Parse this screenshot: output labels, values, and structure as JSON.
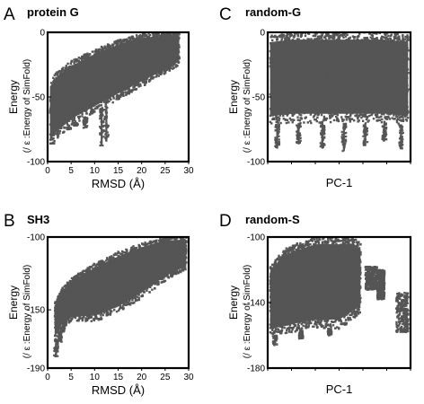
{
  "chart_data": [
    {
      "id": "A",
      "letter": "A",
      "title": "protein G",
      "type": "scatter",
      "xlabel": "RMSD (Å)",
      "ylabel": "Energy",
      "ylabel_sub": "(/ ε :Energy of SimFold)",
      "xlim": [
        0,
        30
      ],
      "ylim": [
        -100,
        0
      ],
      "xticks": [
        "0",
        "5",
        "10",
        "15",
        "20",
        "25",
        "30"
      ],
      "xtick_values": [
        0,
        5,
        10,
        15,
        20,
        25,
        30
      ],
      "yticks": [
        "0",
        "-50",
        "-100"
      ],
      "ytick_values": [
        0,
        -50,
        -100
      ],
      "color": "#555555",
      "band": {
        "x": [
          0.5,
          2,
          5,
          10,
          15,
          20,
          25,
          28
        ],
        "upper": [
          -38,
          -30,
          -22,
          -13,
          -6,
          -1,
          0,
          0
        ],
        "lower": [
          -88,
          -82,
          -72,
          -62,
          -52,
          -42,
          -32,
          -25
        ]
      },
      "spikes": [
        {
          "x": 1.0,
          "low": -86
        },
        {
          "x": 4.5,
          "low": -75
        },
        {
          "x": 6.0,
          "low": -72
        },
        {
          "x": 8.0,
          "low": -74
        },
        {
          "x": 11.5,
          "low": -88
        },
        {
          "x": 12.5,
          "low": -84
        }
      ]
    },
    {
      "id": "B",
      "letter": "B",
      "title": "SH3",
      "type": "scatter",
      "xlabel": "RMSD (Å)",
      "ylabel": "Energy",
      "ylabel_sub": "(/ ε :Energy of SimFold)",
      "xlim": [
        0,
        30
      ],
      "ylim": [
        -190,
        -100
      ],
      "xticks": [
        "0",
        "5",
        "10",
        "15",
        "20",
        "25",
        "30"
      ],
      "xtick_values": [
        0,
        5,
        10,
        15,
        20,
        25,
        30
      ],
      "yticks": [
        "-100",
        "-150",
        "-190"
      ],
      "ytick_values": [
        -100,
        -150,
        -190
      ],
      "color": "#555555",
      "band": {
        "x": [
          1.5,
          3,
          5,
          10,
          15,
          20,
          25,
          29.5
        ],
        "upper": [
          -145,
          -135,
          -128,
          -118,
          -110,
          -104,
          -100,
          -100
        ],
        "lower": [
          -172,
          -162,
          -158,
          -158,
          -152,
          -142,
          -130,
          -122
        ]
      },
      "spikes": [
        {
          "x": 1.8,
          "low": -182
        },
        {
          "x": 2.6,
          "low": -172
        },
        {
          "x": 3.2,
          "low": -165
        },
        {
          "x": 3.6,
          "low": -158
        }
      ]
    },
    {
      "id": "C",
      "letter": "C",
      "title": "random-G",
      "type": "scatter",
      "xlabel": "PC-1",
      "ylabel": "Energy",
      "ylabel_sub": "(/ ε :Energy of SimFold)",
      "xlim": [
        0,
        30
      ],
      "ylim": [
        -100,
        0
      ],
      "xticks": [
        "",
        "",
        "",
        "",
        "",
        "",
        ""
      ],
      "xtick_values": [
        0,
        5,
        10,
        15,
        20,
        25,
        30
      ],
      "yticks": [
        "0",
        "-50",
        "-100"
      ],
      "ytick_values": [
        0,
        -50,
        -100
      ],
      "color": "#555555",
      "band": {
        "x": [
          0.5,
          5,
          10,
          15,
          20,
          25,
          29.5
        ],
        "upper": [
          -2,
          0,
          0,
          0,
          0,
          0,
          -2
        ],
        "lower": [
          -72,
          -70,
          -70,
          -70,
          -70,
          -70,
          -72
        ]
      },
      "spikes": [
        {
          "x": 2.0,
          "low": -90
        },
        {
          "x": 6.5,
          "low": -86
        },
        {
          "x": 11.5,
          "low": -90
        },
        {
          "x": 16.0,
          "low": -92
        },
        {
          "x": 20.5,
          "low": -88
        },
        {
          "x": 24.5,
          "low": -84
        },
        {
          "x": 28.0,
          "low": -90
        }
      ]
    },
    {
      "id": "D",
      "letter": "D",
      "title": "random-S",
      "type": "scatter",
      "xlabel": "PC-1",
      "ylabel": "Energy",
      "ylabel_sub": "(/ ε :Energy of SimFold)",
      "xlim": [
        0,
        30
      ],
      "ylim": [
        -180,
        -100
      ],
      "xticks": [
        "",
        "",
        "",
        "",
        "",
        "",
        ""
      ],
      "xtick_values": [
        0,
        5,
        10,
        15,
        20,
        25,
        30
      ],
      "yticks": [
        "-100",
        "-140",
        "-180"
      ],
      "ytick_values": [
        -100,
        -140,
        -180
      ],
      "color": "#555555",
      "band": {
        "x": [
          0.5,
          3,
          6,
          10,
          15,
          18,
          19.5
        ],
        "upper": [
          -118,
          -108,
          -104,
          -100,
          -100,
          -100,
          -104
        ],
        "lower": [
          -160,
          -160,
          -158,
          -156,
          -156,
          -150,
          -146
        ]
      },
      "blobs": [
        {
          "x0": 20.5,
          "x1": 23.0,
          "upper": -118,
          "lower": -132
        },
        {
          "x0": 23.0,
          "x1": 24.5,
          "upper": -120,
          "lower": -138
        },
        {
          "x0": 27.0,
          "x1": 29.5,
          "upper": -134,
          "lower": -158
        }
      ],
      "spikes": [
        {
          "x": 1.5,
          "low": -166
        },
        {
          "x": 7.0,
          "low": -162
        },
        {
          "x": 13.0,
          "low": -160
        }
      ]
    }
  ]
}
